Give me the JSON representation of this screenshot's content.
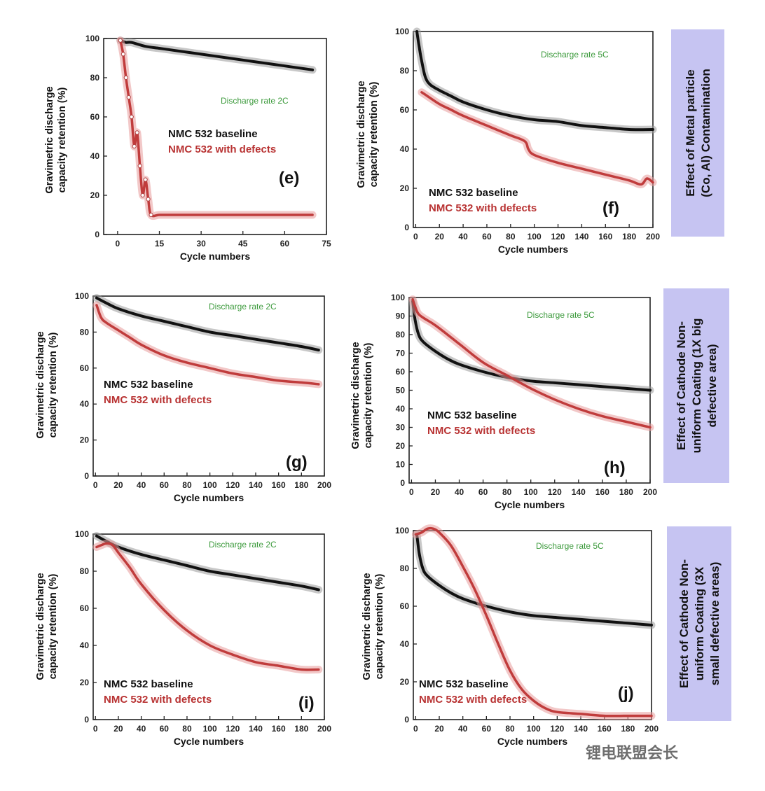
{
  "chart_data": [
    {
      "panel": "(e)",
      "type": "line",
      "note": "Discharge rate 2C",
      "xlabel": "Cycle numbers",
      "ylabel": [
        "Gravimetric discharge",
        "capacity retention (%)"
      ],
      "xlim": [
        -5,
        75
      ],
      "ylim": [
        0,
        100
      ],
      "xticks": [
        "0",
        "15",
        "30",
        "45",
        "60",
        "75"
      ],
      "yticks": [
        "0",
        "20",
        "40",
        "60",
        "80",
        "100"
      ],
      "series": [
        {
          "name": "NMC 532 baseline",
          "color": "#111111",
          "x": [
            1,
            3,
            5,
            10,
            15,
            20,
            30,
            40,
            50,
            60,
            70
          ],
          "y": [
            99,
            98,
            98,
            96,
            95,
            94,
            92,
            90,
            88,
            86,
            84
          ]
        },
        {
          "name": "NMC 532 with defects",
          "color": "#c03c3c",
          "x": [
            1,
            2,
            3,
            4,
            5,
            6,
            7,
            8,
            9,
            10,
            11,
            12,
            15,
            20,
            30,
            40,
            50,
            60,
            70
          ],
          "y": [
            99,
            92,
            80,
            70,
            60,
            45,
            52,
            35,
            20,
            28,
            18,
            10,
            10,
            10,
            10,
            10,
            10,
            10,
            10
          ]
        }
      ]
    },
    {
      "panel": "(f)",
      "type": "line",
      "note": "Discharge rate 5C",
      "xlabel": "Cycle numbers",
      "ylabel": [
        "Gravimetric discharge",
        "capacity retention (%)"
      ],
      "xlim": [
        -2,
        200
      ],
      "ylim": [
        0,
        100
      ],
      "xticks": [
        "0",
        "20",
        "40",
        "60",
        "80",
        "100",
        "120",
        "140",
        "160",
        "180",
        "200"
      ],
      "yticks": [
        "0",
        "20",
        "40",
        "60",
        "80",
        "100"
      ],
      "series": [
        {
          "name": "NMC 532 baseline",
          "color": "#111111",
          "x": [
            1,
            3,
            5,
            8,
            12,
            20,
            30,
            40,
            60,
            80,
            100,
            120,
            140,
            160,
            180,
            200
          ],
          "y": [
            100,
            92,
            85,
            77,
            73,
            70,
            67,
            64,
            60,
            57,
            55,
            54,
            52,
            51,
            50,
            50
          ]
        },
        {
          "name": "NMC 532 with defects",
          "color": "#c03c3c",
          "x": [
            5,
            10,
            20,
            30,
            40,
            60,
            80,
            92,
            95,
            100,
            120,
            140,
            160,
            180,
            190,
            195,
            200
          ],
          "y": [
            69,
            67,
            63,
            60,
            57,
            52,
            47,
            44,
            40,
            37,
            33,
            30,
            27,
            24,
            22,
            25,
            23
          ]
        }
      ]
    },
    {
      "panel": "(g)",
      "type": "line",
      "note": "Discharge rate 2C",
      "xlabel": "Cycle numbers",
      "ylabel": [
        "Gravimetric discharge",
        "capacity retention (%)"
      ],
      "xlim": [
        -2,
        200
      ],
      "ylim": [
        0,
        100
      ],
      "xticks": [
        "0",
        "20",
        "40",
        "60",
        "80",
        "100",
        "120",
        "140",
        "160",
        "180",
        "200"
      ],
      "yticks": [
        "0",
        "20",
        "40",
        "60",
        "80",
        "100"
      ],
      "series": [
        {
          "name": "NMC 532 baseline",
          "color": "#111111",
          "x": [
            1,
            10,
            20,
            40,
            60,
            80,
            100,
            120,
            140,
            160,
            180,
            195
          ],
          "y": [
            99,
            96,
            93,
            89,
            86,
            83,
            80,
            78,
            76,
            74,
            72,
            70
          ]
        },
        {
          "name": "NMC 532 with defects",
          "color": "#c03c3c",
          "x": [
            1,
            5,
            10,
            20,
            30,
            40,
            60,
            80,
            100,
            120,
            140,
            160,
            180,
            195
          ],
          "y": [
            95,
            88,
            85,
            81,
            77,
            73,
            67,
            63,
            60,
            57,
            55,
            53,
            52,
            51
          ]
        }
      ]
    },
    {
      "panel": "(h)",
      "type": "line",
      "note": "Discharge rate 5C",
      "xlabel": "Cycle numbers",
      "ylabel": [
        "Gravimetric discharge",
        "capacity retention (%)"
      ],
      "xlim": [
        -2,
        200
      ],
      "ylim": [
        0,
        100
      ],
      "xticks": [
        "0",
        "20",
        "40",
        "60",
        "80",
        "100",
        "120",
        "140",
        "160",
        "180",
        "200"
      ],
      "yticks": [
        "0",
        "10",
        "20",
        "30",
        "40",
        "50",
        "60",
        "70",
        "80",
        "90",
        "100"
      ],
      "series": [
        {
          "name": "NMC 532 baseline",
          "color": "#111111",
          "x": [
            1,
            3,
            6,
            10,
            20,
            30,
            40,
            60,
            80,
            100,
            120,
            140,
            160,
            180,
            200
          ],
          "y": [
            98,
            88,
            80,
            76,
            71,
            67,
            64,
            60,
            57,
            55,
            54,
            53,
            52,
            51,
            50
          ]
        },
        {
          "name": "NMC 532 with defects",
          "color": "#c03c3c",
          "x": [
            1,
            5,
            10,
            20,
            40,
            60,
            80,
            100,
            120,
            140,
            160,
            180,
            200
          ],
          "y": [
            99,
            92,
            89,
            85,
            75,
            65,
            58,
            51,
            45,
            40,
            36,
            33,
            30
          ]
        }
      ]
    },
    {
      "panel": "(i)",
      "type": "line",
      "note": "Discharge rate 2C",
      "xlabel": "Cycle numbers",
      "ylabel": [
        "Gravimetric discharge",
        "capacity retention (%)"
      ],
      "xlim": [
        -2,
        200
      ],
      "ylim": [
        0,
        100
      ],
      "xticks": [
        "0",
        "20",
        "40",
        "60",
        "80",
        "100",
        "120",
        "140",
        "160",
        "180",
        "200"
      ],
      "yticks": [
        "0",
        "20",
        "40",
        "60",
        "80",
        "100"
      ],
      "series": [
        {
          "name": "NMC 532 baseline",
          "color": "#111111",
          "x": [
            1,
            10,
            20,
            40,
            60,
            80,
            100,
            120,
            140,
            160,
            180,
            195
          ],
          "y": [
            99,
            96,
            93,
            89,
            86,
            83,
            80,
            78,
            76,
            74,
            72,
            70
          ]
        },
        {
          "name": "NMC 532 with defects",
          "color": "#c03c3c",
          "x": [
            1,
            5,
            10,
            15,
            20,
            30,
            40,
            60,
            80,
            100,
            120,
            140,
            160,
            180,
            195
          ],
          "y": [
            93,
            94,
            95,
            94,
            90,
            82,
            73,
            59,
            48,
            40,
            35,
            31,
            29,
            27,
            27
          ]
        }
      ]
    },
    {
      "panel": "(j)",
      "type": "line",
      "note": "Discharge rate 5C",
      "xlabel": "Cycle numbers",
      "ylabel": [
        "Gravimetric discharge",
        "capacity retention (%)"
      ],
      "xlim": [
        -2,
        200
      ],
      "ylim": [
        0,
        100
      ],
      "xticks": [
        "0",
        "20",
        "40",
        "60",
        "80",
        "100",
        "120",
        "140",
        "160",
        "180",
        "200"
      ],
      "yticks": [
        "0",
        "20",
        "40",
        "60",
        "80",
        "100"
      ],
      "series": [
        {
          "name": "NMC 532 baseline",
          "color": "#111111",
          "x": [
            1,
            3,
            6,
            10,
            20,
            30,
            40,
            60,
            80,
            100,
            120,
            140,
            160,
            180,
            200
          ],
          "y": [
            98,
            88,
            80,
            76,
            71,
            67,
            64,
            60,
            57,
            55,
            54,
            53,
            52,
            51,
            50
          ]
        },
        {
          "name": "NMC 532 with defects",
          "color": "#c03c3c",
          "x": [
            0,
            5,
            10,
            15,
            20,
            30,
            40,
            50,
            60,
            70,
            80,
            90,
            100,
            110,
            120,
            140,
            160,
            180,
            200
          ],
          "y": [
            98,
            99,
            101,
            101,
            99,
            92,
            81,
            69,
            55,
            40,
            26,
            16,
            10,
            6,
            4,
            3,
            2,
            2,
            2
          ]
        }
      ]
    }
  ],
  "side_labels": [
    [
      "Effect of Metal particle",
      "(Co, Al) Contamination"
    ],
    [
      "Effect of Cathode Non-",
      "uniform Coating (1X big",
      "defective area)"
    ],
    [
      "Effect of Cathode Non-",
      "uniform Coating (3X",
      "small defective areas)"
    ]
  ],
  "watermark": "锂电联盟会长"
}
